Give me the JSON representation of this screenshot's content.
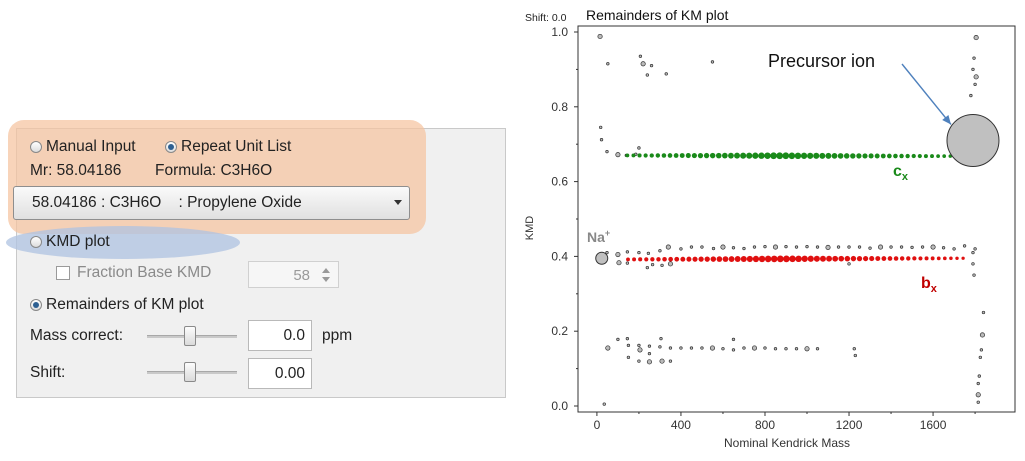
{
  "panel": {
    "radio_manual": "Manual Input",
    "radio_repeat": "Repeat Unit List",
    "mr_label": "Mr: 58.04186",
    "formula_label": "Formula: C3H6O",
    "unit_select": "58.04186 : C3H6O    : Propylene Oxide",
    "radio_kmd": "KMD plot",
    "fraction_label": "Fraction Base KMD",
    "fraction_value": "58",
    "radio_remainders": "Remainders of KM plot",
    "mass_correct_label": "Mass correct:",
    "mass_correct_value": "0.0",
    "mass_correct_unit": "ppm",
    "shift_label": "Shift:",
    "shift_value": "0.00",
    "selected_mode": "Remainders of KM plot",
    "mass_correct_slider_level": 0.5,
    "shift_slider_level": 0.5,
    "colors": {
      "highlight_orange": "#f5c4a0",
      "highlight_blue": "#afc3e1",
      "radio_dot": "#2d5f91"
    }
  },
  "chart_data": {
    "type": "scatter",
    "title": "Remainders of KM plot",
    "shift_label": "Shift: 0.0",
    "xlabel": "Nominal Kendrick Mass",
    "ylabel": "KMD",
    "xlim": [
      -90,
      1990
    ],
    "ylim": [
      0,
      1.0
    ],
    "xticks": [
      "0",
      "400",
      "800",
      "1200",
      "1600"
    ],
    "yticks": [
      "0.0",
      "0.2",
      "0.4",
      "0.6",
      "0.8",
      "1.0"
    ],
    "annotations": {
      "precursor": "Precursor ion",
      "na": "Na",
      "na_sup": "+",
      "cx": "c",
      "cx_sub": "x",
      "bx": "b",
      "bx_sub": "x"
    },
    "colors": {
      "c_series": "#1a8a1a",
      "b_series": "#e01010",
      "c_label": "#1a8a1a",
      "b_label": "#c00000",
      "arrow": "#4f81bd",
      "marker_fill": "#c0c0c0"
    },
    "series": [
      {
        "name": "c",
        "color": "#1a8a1a",
        "x_start": 145,
        "x_step": 29,
        "count": 56,
        "y_start": 0.67,
        "y_end": 0.668
      },
      {
        "name": "b",
        "color": "#e01010",
        "x_start": 148,
        "x_step": 29,
        "count": 56,
        "y_start": 0.392,
        "y_end": 0.395
      }
    ],
    "special_points": [
      {
        "label": "precursor",
        "x": 1790,
        "y": 0.71,
        "size": "large"
      },
      {
        "label": "na",
        "x": 23,
        "y": 0.395,
        "size": "medium"
      }
    ],
    "grey_points": [
      [
        15,
        0.988
      ],
      [
        52,
        0.915
      ],
      [
        18,
        0.745
      ],
      [
        22,
        0.712
      ],
      [
        48,
        0.68
      ],
      [
        100,
        0.672
      ],
      [
        140,
        0.67
      ],
      [
        185,
        0.673
      ],
      [
        200,
        0.69
      ],
      [
        207,
        0.935
      ],
      [
        220,
        0.915
      ],
      [
        240,
        0.885
      ],
      [
        260,
        0.91
      ],
      [
        330,
        0.888
      ],
      [
        550,
        0.92
      ],
      [
        1805,
        0.985
      ],
      [
        1795,
        0.93
      ],
      [
        1790,
        0.9
      ],
      [
        1780,
        0.83
      ],
      [
        1800,
        0.86
      ],
      [
        1805,
        0.88
      ],
      [
        1800,
        0.7
      ],
      [
        1810,
        0.71
      ],
      [
        1800,
        0.69
      ],
      [
        48,
        0.41
      ],
      [
        100,
        0.405
      ],
      [
        145,
        0.412
      ],
      [
        200,
        0.41
      ],
      [
        245,
        0.408
      ],
      [
        300,
        0.415
      ],
      [
        340,
        0.425
      ],
      [
        400,
        0.42
      ],
      [
        450,
        0.425
      ],
      [
        500,
        0.425
      ],
      [
        555,
        0.421
      ],
      [
        600,
        0.425
      ],
      [
        650,
        0.423
      ],
      [
        700,
        0.421
      ],
      [
        750,
        0.425
      ],
      [
        800,
        0.426
      ],
      [
        850,
        0.425
      ],
      [
        900,
        0.426
      ],
      [
        950,
        0.425
      ],
      [
        1000,
        0.426
      ],
      [
        1050,
        0.425
      ],
      [
        1100,
        0.424
      ],
      [
        1150,
        0.425
      ],
      [
        1200,
        0.425
      ],
      [
        1250,
        0.425
      ],
      [
        1300,
        0.422
      ],
      [
        1350,
        0.425
      ],
      [
        1400,
        0.425
      ],
      [
        1450,
        0.425
      ],
      [
        1500,
        0.424
      ],
      [
        1550,
        0.425
      ],
      [
        1600,
        0.425
      ],
      [
        1650,
        0.423
      ],
      [
        1700,
        0.42
      ],
      [
        1750,
        0.428
      ],
      [
        1800,
        0.42
      ],
      [
        105,
        0.383
      ],
      [
        145,
        0.382
      ],
      [
        240,
        0.37
      ],
      [
        265,
        0.378
      ],
      [
        310,
        0.376
      ],
      [
        350,
        0.38
      ],
      [
        1200,
        0.38
      ],
      [
        1790,
        0.41
      ],
      [
        1790,
        0.38
      ],
      [
        1795,
        0.35
      ],
      [
        52,
        0.155
      ],
      [
        100,
        0.178
      ],
      [
        145,
        0.18
      ],
      [
        150,
        0.162
      ],
      [
        200,
        0.162
      ],
      [
        205,
        0.15
      ],
      [
        250,
        0.16
      ],
      [
        250,
        0.14
      ],
      [
        300,
        0.158
      ],
      [
        305,
        0.18
      ],
      [
        310,
        0.12
      ],
      [
        350,
        0.155
      ],
      [
        400,
        0.155
      ],
      [
        450,
        0.155
      ],
      [
        500,
        0.155
      ],
      [
        550,
        0.155
      ],
      [
        600,
        0.153
      ],
      [
        650,
        0.178
      ],
      [
        650,
        0.15
      ],
      [
        700,
        0.155
      ],
      [
        750,
        0.155
      ],
      [
        800,
        0.155
      ],
      [
        850,
        0.153
      ],
      [
        900,
        0.153
      ],
      [
        950,
        0.153
      ],
      [
        1000,
        0.153
      ],
      [
        1050,
        0.153
      ],
      [
        1225,
        0.153
      ],
      [
        1230,
        0.135
      ],
      [
        1840,
        0.25
      ],
      [
        1835,
        0.19
      ],
      [
        1830,
        0.15
      ],
      [
        1825,
        0.13
      ],
      [
        1820,
        0.08
      ],
      [
        1815,
        0.06
      ],
      [
        1815,
        0.03
      ],
      [
        1815,
        0.01
      ],
      [
        35,
        0.005
      ],
      [
        150,
        0.13
      ],
      [
        200,
        0.12
      ],
      [
        250,
        0.118
      ],
      [
        350,
        0.12
      ]
    ]
  }
}
